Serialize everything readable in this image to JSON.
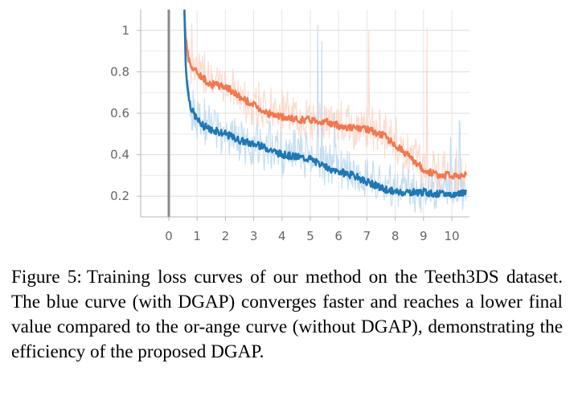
{
  "chart_data": {
    "type": "line",
    "title": "",
    "xlabel": "",
    "ylabel": "",
    "xlim": [
      -1,
      10.6
    ],
    "ylim": [
      0.1,
      1.1
    ],
    "x_ticks": [
      "0",
      "1",
      "2",
      "3",
      "4",
      "5",
      "6",
      "7",
      "8",
      "9",
      "10"
    ],
    "y_ticks": [
      "0.2",
      "0.4",
      "0.6",
      "0.8",
      "1"
    ],
    "grid": true,
    "series": [
      {
        "name": "without DGAP",
        "color": "#f07850",
        "raw_color": "#fcd5c6",
        "x": [
          0.55,
          0.6,
          0.7,
          0.8,
          1.0,
          1.2,
          1.5,
          2.0,
          2.5,
          3.0,
          3.5,
          4.0,
          4.5,
          5.0,
          5.5,
          6.0,
          6.5,
          7.0,
          7.5,
          8.0,
          8.5,
          9.0,
          9.5,
          10.0,
          10.5
        ],
        "values": [
          1.1,
          0.95,
          0.86,
          0.82,
          0.8,
          0.77,
          0.74,
          0.73,
          0.68,
          0.64,
          0.6,
          0.58,
          0.57,
          0.57,
          0.56,
          0.54,
          0.53,
          0.52,
          0.5,
          0.45,
          0.39,
          0.33,
          0.3,
          0.3,
          0.3
        ]
      },
      {
        "name": "with DGAP",
        "color": "#1f77b4",
        "raw_color": "#bcd8ef",
        "x": [
          0.55,
          0.6,
          0.7,
          0.8,
          1.0,
          1.2,
          1.5,
          2.0,
          2.5,
          3.0,
          3.5,
          4.0,
          4.5,
          5.0,
          5.5,
          6.0,
          6.5,
          7.0,
          7.5,
          8.0,
          8.5,
          9.0,
          9.5,
          10.0,
          10.5
        ],
        "values": [
          1.1,
          0.82,
          0.68,
          0.62,
          0.57,
          0.54,
          0.52,
          0.5,
          0.47,
          0.45,
          0.43,
          0.4,
          0.39,
          0.38,
          0.34,
          0.32,
          0.3,
          0.27,
          0.24,
          0.22,
          0.22,
          0.22,
          0.21,
          0.21,
          0.22
        ]
      }
    ]
  },
  "caption": {
    "label": "Figure 5:",
    "text": "Training loss curves of our method on the Teeth3DS dataset. The blue curve (with DGAP) converges faster and reaches a lower final value compared to the or-ange curve (without DGAP), demonstrating the efficiency of the proposed DGAP."
  }
}
